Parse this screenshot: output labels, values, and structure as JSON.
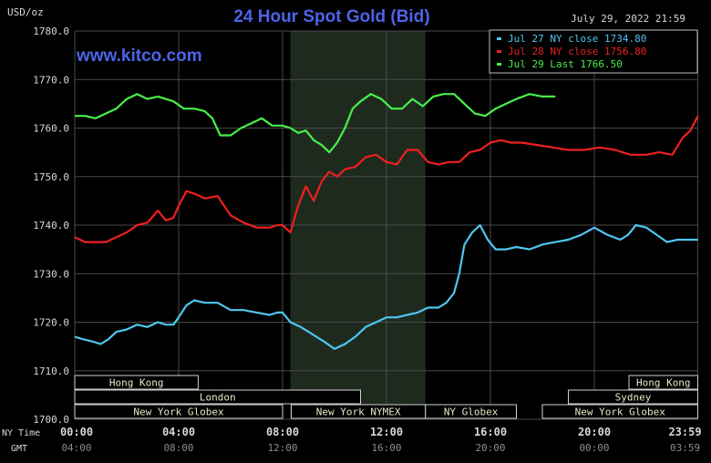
{
  "header": {
    "unit_label": "USD/oz",
    "title": "24 Hour Spot Gold (Bid)",
    "datetime": "July 29, 2022 21:59",
    "watermark": "www.kitco.com"
  },
  "colors": {
    "background": "#000000",
    "plot_bg": "#000000",
    "night_band": "#1f2a1f",
    "grid": "#4a4a4a",
    "title": "#4d64e8",
    "watermark": "#4d64e8",
    "text": "#d8d8d8",
    "session_label": "#e8e8c8",
    "jul27": "#4fc6f0",
    "jul28": "#ef2020",
    "jul29": "#48f048"
  },
  "legend": [
    {
      "label": "Jul 27 NY close 1734.80",
      "color": "#4fc6f0"
    },
    {
      "label": "Jul 28 NY close 1756.80",
      "color": "#ef2020"
    },
    {
      "label": "Jul 29 Last 1766.50",
      "color": "#48f048"
    }
  ],
  "sessions": [
    {
      "label": "Hong Kong",
      "row": 0,
      "start": "00:00",
      "end": "04:45"
    },
    {
      "label": "London",
      "row": 1,
      "start": "00:00",
      "end": "11:00"
    },
    {
      "label": "New York Globex",
      "row": 2,
      "start": "00:00",
      "end": "08:00"
    },
    {
      "label": "New York NYMEX",
      "row": 2,
      "start": "08:20",
      "end": "13:30"
    },
    {
      "label": "NY Globex",
      "row": 2,
      "start": "13:30",
      "end": "17:00"
    },
    {
      "label": "Hong Kong",
      "row": 0,
      "start": "21:20",
      "end": "23:59"
    },
    {
      "label": "Sydney",
      "row": 1,
      "start": "19:00",
      "end": "23:59"
    },
    {
      "label": "New York Globex",
      "row": 2,
      "start": "18:00",
      "end": "23:59"
    }
  ],
  "axis_titles": {
    "ny_time": "NY Time",
    "gmt": "GMT"
  },
  "chart_data": {
    "type": "line",
    "title": "24 Hour Spot Gold (Bid)",
    "ylabel": "USD/oz",
    "xlabel": "",
    "ylim": [
      1700,
      1780
    ],
    "xlim": [
      0,
      24
    ],
    "y_ticks": [
      "1700.0",
      "1710.0",
      "1720.0",
      "1730.0",
      "1740.0",
      "1750.0",
      "1760.0",
      "1770.0",
      "1780.0"
    ],
    "x_ticks_ny": [
      "00:00",
      "04:00",
      "08:00",
      "12:00",
      "16:00",
      "20:00",
      "23:59"
    ],
    "x_ticks_gmt": [
      "04:00",
      "08:00",
      "12:00",
      "16:00",
      "20:00",
      "00:00",
      "03:59"
    ],
    "night_band_hours": [
      8.3,
      13.5
    ],
    "grid": true,
    "legend_position": "top-right",
    "series": [
      {
        "name": "Jul 27 NY close 1734.80",
        "x": [
          0,
          0.3,
          0.7,
          1.0,
          1.3,
          1.6,
          2.0,
          2.4,
          2.8,
          3.2,
          3.5,
          3.8,
          4.0,
          4.3,
          4.6,
          5.0,
          5.5,
          6.0,
          6.5,
          7.0,
          7.5,
          7.8,
          8.0,
          8.3,
          8.7,
          9.0,
          9.3,
          9.6,
          10.0,
          10.4,
          10.8,
          11.2,
          11.6,
          12.0,
          12.4,
          12.8,
          13.2,
          13.6,
          14.0,
          14.3,
          14.6,
          14.8,
          15.0,
          15.3,
          15.6,
          15.9,
          16.2,
          16.6,
          17.0,
          17.5,
          18.0,
          18.5,
          19.0,
          19.5,
          20.0,
          20.5,
          21.0,
          21.3,
          21.6,
          22.0,
          22.4,
          22.8,
          23.2,
          23.6,
          23.99
        ],
        "y": [
          1717,
          1716.5,
          1716,
          1715.5,
          1716.5,
          1718,
          1718.5,
          1719.5,
          1719,
          1720,
          1719.5,
          1719.5,
          1721,
          1723.5,
          1724.5,
          1724,
          1724,
          1722.5,
          1722.5,
          1722,
          1721.5,
          1722,
          1722,
          1720,
          1719,
          1718,
          1717,
          1716,
          1714.5,
          1715.5,
          1717,
          1719,
          1720,
          1721,
          1721,
          1721.5,
          1722,
          1723,
          1723,
          1724,
          1726,
          1730,
          1736,
          1738.5,
          1740,
          1737,
          1735,
          1735,
          1735.5,
          1735,
          1736,
          1736.5,
          1737,
          1738,
          1739.5,
          1738,
          1737,
          1738,
          1740,
          1739.5,
          1738,
          1736.5,
          1737,
          1737,
          1737
        ]
      },
      {
        "name": "Jul 28 NY close 1756.80",
        "x": [
          0,
          0.4,
          0.8,
          1.2,
          1.6,
          2.0,
          2.4,
          2.8,
          3.2,
          3.5,
          3.8,
          4.0,
          4.3,
          4.6,
          5.0,
          5.5,
          6.0,
          6.5,
          7.0,
          7.5,
          7.8,
          8.0,
          8.3,
          8.6,
          8.9,
          9.2,
          9.5,
          9.8,
          10.1,
          10.4,
          10.8,
          11.2,
          11.6,
          12.0,
          12.4,
          12.8,
          13.2,
          13.6,
          14.0,
          14.4,
          14.8,
          15.2,
          15.6,
          16.0,
          16.4,
          16.8,
          17.2,
          17.8,
          18.4,
          19.0,
          19.6,
          20.2,
          20.8,
          21.4,
          22.0,
          22.5,
          23.0,
          23.4,
          23.7,
          23.99
        ],
        "y": [
          1737.5,
          1736.5,
          1736.5,
          1736.5,
          1737.5,
          1738.5,
          1740,
          1740.5,
          1743,
          1741,
          1741.5,
          1744,
          1747,
          1746.5,
          1745.5,
          1746,
          1742,
          1740.5,
          1739.5,
          1739.5,
          1740,
          1740,
          1738.5,
          1744,
          1748,
          1745,
          1749,
          1751,
          1750,
          1751.5,
          1752,
          1754,
          1754.5,
          1753,
          1752.5,
          1755.5,
          1755.5,
          1753,
          1752.5,
          1753,
          1753,
          1755,
          1755.5,
          1757,
          1757.5,
          1757,
          1757,
          1756.5,
          1756,
          1755.5,
          1755.5,
          1756,
          1755.5,
          1754.5,
          1754.5,
          1755,
          1754.5,
          1758,
          1759.5,
          1762.5
        ]
      },
      {
        "name": "Jul 29 Last 1766.50",
        "x": [
          0,
          0.4,
          0.8,
          1.2,
          1.6,
          2.0,
          2.4,
          2.8,
          3.2,
          3.5,
          3.8,
          4.2,
          4.6,
          5.0,
          5.3,
          5.6,
          6.0,
          6.4,
          6.8,
          7.2,
          7.6,
          8.0,
          8.3,
          8.6,
          8.9,
          9.2,
          9.5,
          9.8,
          10.1,
          10.4,
          10.7,
          11.0,
          11.4,
          11.8,
          12.2,
          12.6,
          13.0,
          13.4,
          13.8,
          14.2,
          14.6,
          15.0,
          15.4,
          15.8,
          16.2,
          16.6,
          17.0,
          17.5,
          18.0,
          18.5
        ],
        "y": [
          1762.5,
          1762.5,
          1762,
          1763,
          1764,
          1766,
          1767,
          1766,
          1766.5,
          1766,
          1765.5,
          1764,
          1764,
          1763.5,
          1762,
          1758.5,
          1758.5,
          1760,
          1761,
          1762,
          1760.5,
          1760.5,
          1760,
          1759,
          1759.5,
          1757.5,
          1756.5,
          1755,
          1757,
          1760,
          1764,
          1765.5,
          1767,
          1766,
          1764,
          1764,
          1766,
          1764.5,
          1766.5,
          1767,
          1767,
          1765,
          1763,
          1762.5,
          1764,
          1765,
          1766,
          1767,
          1766.5,
          1766.5
        ]
      }
    ]
  }
}
